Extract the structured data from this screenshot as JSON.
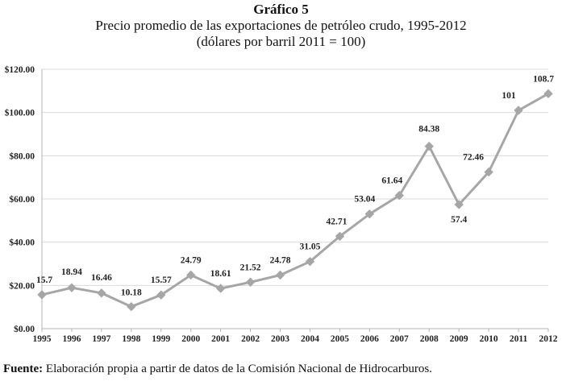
{
  "header": {
    "chart_number": "Gráfico 5",
    "title": "Precio promedio de las exportaciones de petróleo crudo, 1995-2012",
    "subtitle": "(dólares por barril 2011 = 100)"
  },
  "source": {
    "label": "Fuente:",
    "text": "Elaboración propia a partir de datos de la Comisión Nacional de Hidrocarburos."
  },
  "colors": {
    "line": "#a6a6a6",
    "marker": "#a6a6a6",
    "axis": "#b3b3b3",
    "gridline": "#d9d9d9",
    "text": "#222222"
  },
  "chart_data": {
    "type": "line",
    "title": "Precio promedio de las exportaciones de petróleo crudo, 1995-2012",
    "xlabel": "",
    "ylabel": "",
    "ylim": [
      0,
      120
    ],
    "grid": true,
    "legend": "none",
    "y_ticks": [
      0,
      20,
      40,
      60,
      80,
      100,
      120
    ],
    "y_tick_labels": [
      "$0.00",
      "$20.00",
      "$40.00",
      "$60.00",
      "$80.00",
      "$100.00",
      "$120.00"
    ],
    "categories": [
      "1995",
      "1996",
      "1997",
      "1998",
      "1999",
      "2000",
      "2001",
      "2002",
      "2003",
      "2004",
      "2005",
      "2006",
      "2007",
      "2008",
      "2009",
      "2010",
      "2011",
      "2012"
    ],
    "values": [
      15.7,
      18.94,
      16.46,
      10.18,
      15.57,
      24.79,
      18.61,
      21.52,
      24.78,
      31.05,
      42.71,
      53.04,
      61.64,
      84.38,
      57.4,
      72.46,
      101,
      108.7
    ],
    "data_labels": [
      "15.7",
      "18.94",
      "16.46",
      "10.18",
      "15.57",
      "24.79",
      "18.61",
      "21.52",
      "24.78",
      "31.05",
      "42.71",
      "53.04",
      "61.64",
      "84.38",
      "57.4",
      "72.46",
      "101",
      "108.7"
    ]
  }
}
